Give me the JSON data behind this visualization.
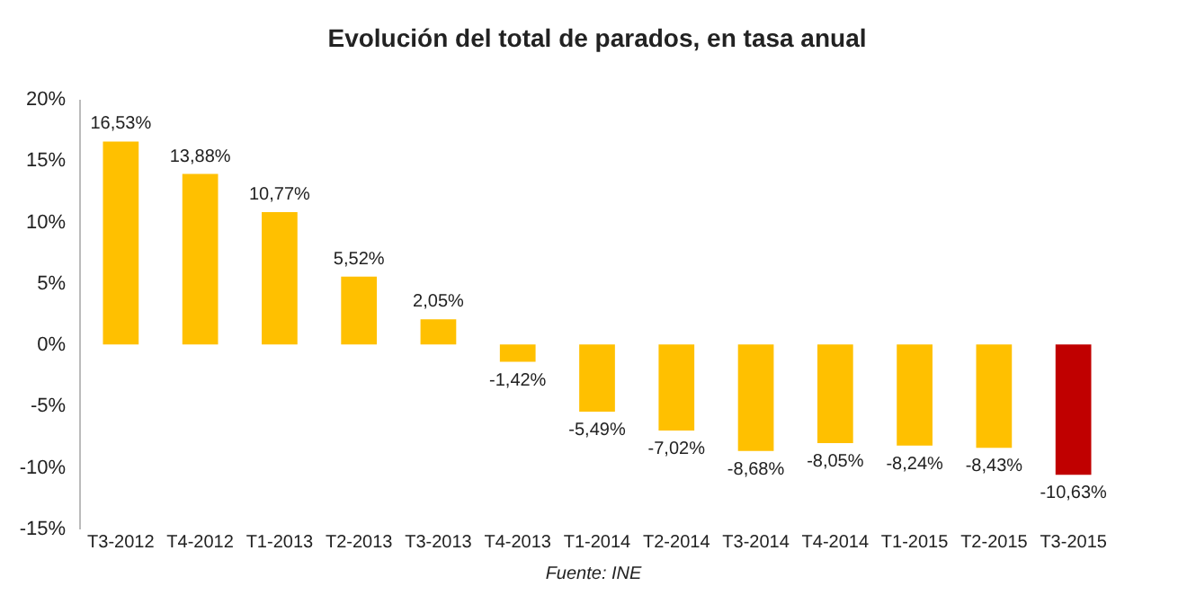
{
  "chart_data": {
    "type": "bar",
    "title": "Evolución del total de parados, en tasa anual",
    "categories": [
      "T3-2012",
      "T4-2012",
      "T1-2013",
      "T2-2013",
      "T3-2013",
      "T4-2013",
      "T1-2014",
      "T2-2014",
      "T3-2014",
      "T4-2014",
      "T1-2015",
      "T2-2015",
      "T3-2015"
    ],
    "values": [
      16.53,
      13.88,
      10.77,
      5.52,
      2.05,
      -1.42,
      -5.49,
      -7.02,
      -8.68,
      -8.05,
      -8.24,
      -8.43,
      -10.63
    ],
    "value_labels": [
      "16,53%",
      "13,88%",
      "10,77%",
      "5,52%",
      "2,05%",
      "-1,42%",
      "-5,49%",
      "-7,02%",
      "-8,68%",
      "-8,05%",
      "-8,24%",
      "-8,43%",
      "-10,63%"
    ],
    "colors": [
      "#ffc000",
      "#ffc000",
      "#ffc000",
      "#ffc000",
      "#ffc000",
      "#ffc000",
      "#ffc000",
      "#ffc000",
      "#ffc000",
      "#ffc000",
      "#ffc000",
      "#ffc000",
      "#c00000"
    ],
    "ylim": [
      -15,
      20
    ],
    "yticks": [
      {
        "value": -15,
        "label": "-15%"
      },
      {
        "value": -10,
        "label": "-10%"
      },
      {
        "value": -5,
        "label": "-5%"
      },
      {
        "value": 0,
        "label": "0%"
      },
      {
        "value": 5,
        "label": "5%"
      },
      {
        "value": 10,
        "label": "10%"
      },
      {
        "value": 15,
        "label": "15%"
      },
      {
        "value": 20,
        "label": "20%"
      }
    ],
    "grid": false,
    "annotations": [
      "Fuente: INE"
    ]
  }
}
